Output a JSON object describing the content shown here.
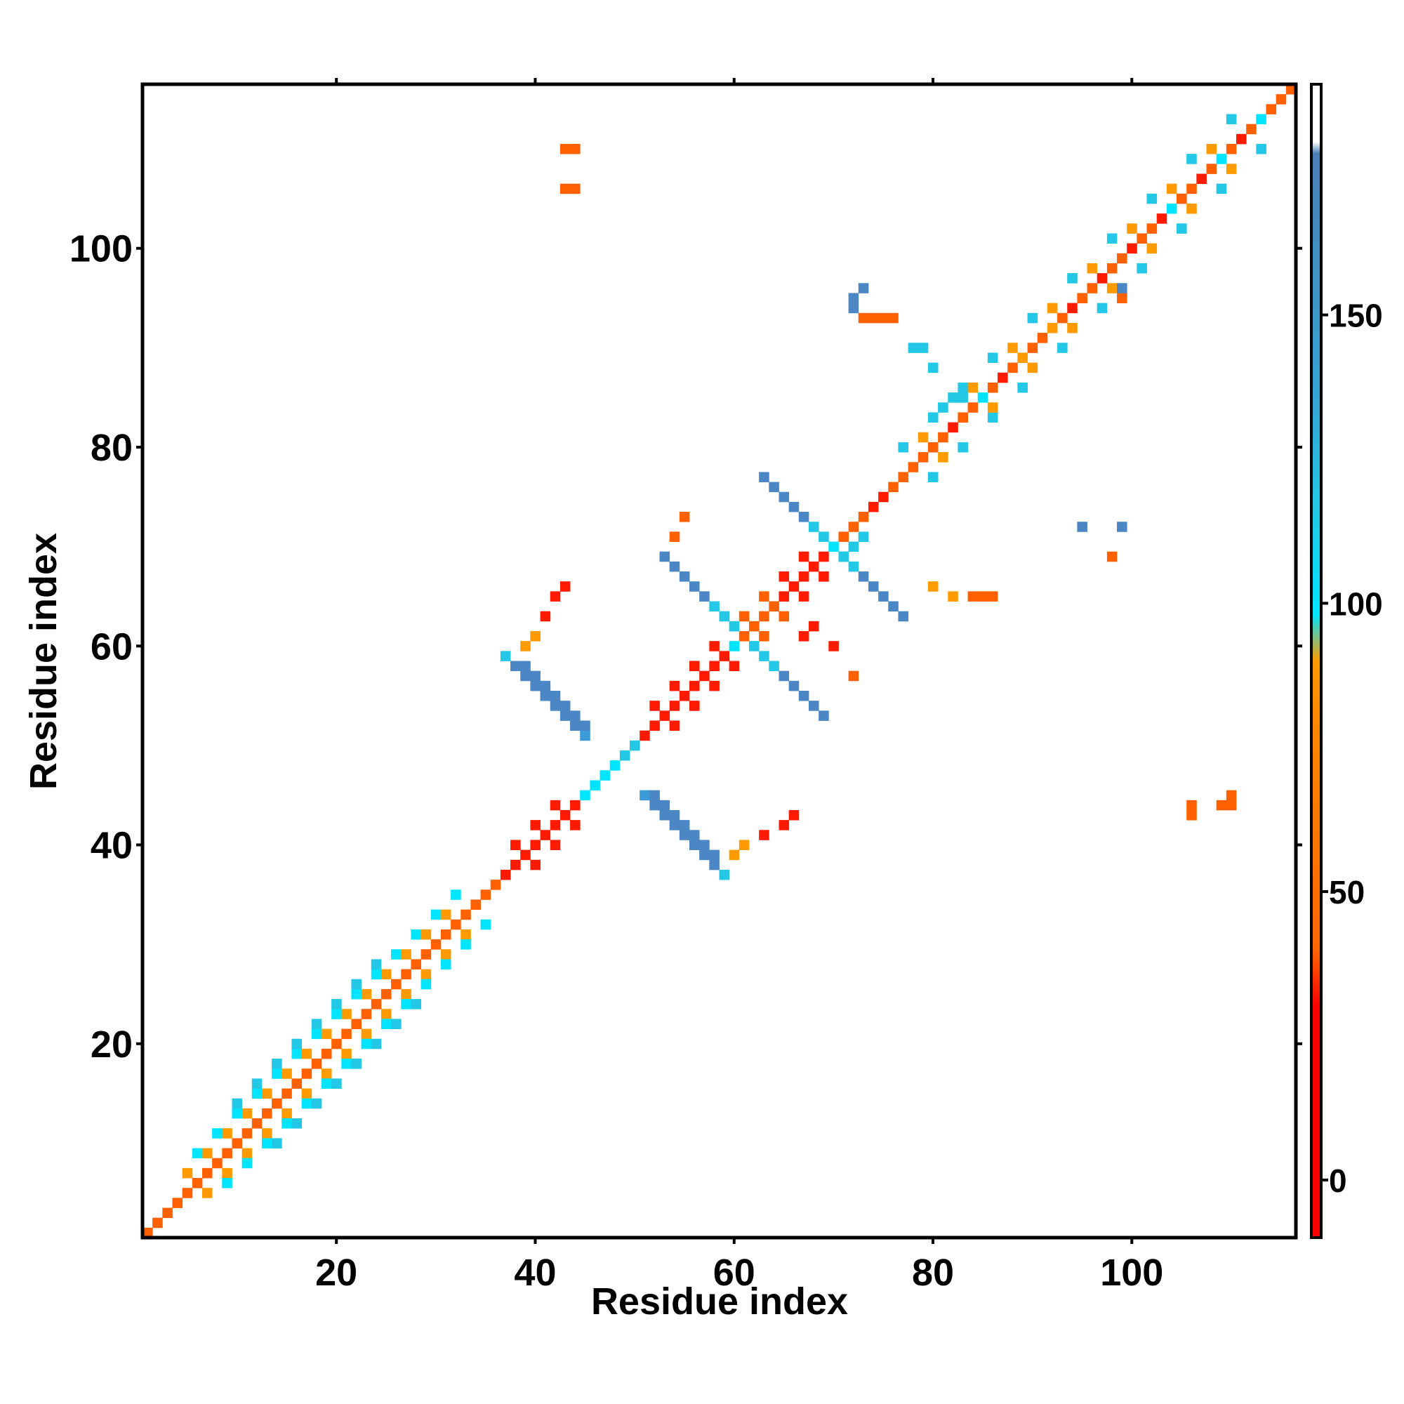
{
  "chart_data": {
    "type": "heatmap",
    "title": "",
    "xlabel": "Residue index",
    "ylabel": "Residue index",
    "xlim": [
      0.5,
      116.5
    ],
    "ylim": [
      0.5,
      116.5
    ],
    "x_ticks": [
      20,
      40,
      60,
      80,
      100
    ],
    "y_ticks": [
      20,
      40,
      60,
      80,
      100
    ],
    "grid": false,
    "colorbar": {
      "range": [
        -10,
        190
      ],
      "ticks": [
        0,
        50,
        100,
        150
      ],
      "gradient": [
        "#ff0000",
        "#ff0000",
        "#ff6600",
        "#ff8800",
        "#ff9900",
        "#00e5ff",
        "#22c9e3",
        "#33a6d6",
        "#4a7fb5",
        "#ffffff"
      ],
      "stops": [
        0,
        0.2,
        0.25,
        0.45,
        0.5,
        0.54,
        0.63,
        0.72,
        0.94,
        0.95
      ]
    },
    "cell_colors": {
      "0": "#ff1a00",
      "1": "#ff6000",
      "2": "#ff9a00",
      "3": "#00e5ff",
      "4": "#22c8e5",
      "5": "#4b86c5",
      "6": "#3b9ad8"
    },
    "cells": [
      [
        1,
        1,
        1
      ],
      [
        2,
        2,
        1
      ],
      [
        3,
        3,
        1
      ],
      [
        4,
        4,
        1
      ],
      [
        5,
        5,
        1
      ],
      [
        6,
        6,
        1
      ],
      [
        7,
        7,
        1
      ],
      [
        8,
        8,
        1
      ],
      [
        9,
        9,
        1
      ],
      [
        10,
        10,
        1
      ],
      [
        11,
        11,
        1
      ],
      [
        12,
        12,
        1
      ],
      [
        13,
        13,
        1
      ],
      [
        14,
        14,
        1
      ],
      [
        15,
        15,
        1
      ],
      [
        16,
        16,
        1
      ],
      [
        17,
        17,
        1
      ],
      [
        18,
        18,
        1
      ],
      [
        19,
        19,
        1
      ],
      [
        20,
        20,
        1
      ],
      [
        21,
        21,
        1
      ],
      [
        22,
        22,
        1
      ],
      [
        23,
        23,
        1
      ],
      [
        24,
        24,
        1
      ],
      [
        25,
        25,
        1
      ],
      [
        26,
        26,
        1
      ],
      [
        27,
        27,
        1
      ],
      [
        28,
        28,
        1
      ],
      [
        29,
        29,
        1
      ],
      [
        30,
        30,
        1
      ],
      [
        31,
        31,
        1
      ],
      [
        32,
        32,
        1
      ],
      [
        33,
        33,
        1
      ],
      [
        34,
        34,
        1
      ],
      [
        35,
        35,
        1
      ],
      [
        36,
        36,
        1
      ],
      [
        37,
        37,
        0
      ],
      [
        38,
        38,
        0
      ],
      [
        39,
        39,
        0
      ],
      [
        40,
        40,
        0
      ],
      [
        41,
        41,
        0
      ],
      [
        42,
        42,
        0
      ],
      [
        43,
        43,
        0
      ],
      [
        44,
        44,
        0
      ],
      [
        45,
        45,
        3
      ],
      [
        46,
        46,
        3
      ],
      [
        47,
        47,
        3
      ],
      [
        48,
        48,
        3
      ],
      [
        49,
        49,
        4
      ],
      [
        50,
        50,
        4
      ],
      [
        51,
        51,
        0
      ],
      [
        52,
        52,
        0
      ],
      [
        53,
        53,
        0
      ],
      [
        54,
        54,
        0
      ],
      [
        55,
        55,
        0
      ],
      [
        56,
        56,
        0
      ],
      [
        57,
        57,
        0
      ],
      [
        58,
        58,
        0
      ],
      [
        59,
        59,
        0
      ],
      [
        60,
        60,
        3
      ],
      [
        61,
        61,
        1
      ],
      [
        62,
        62,
        1
      ],
      [
        63,
        63,
        1
      ],
      [
        64,
        64,
        1
      ],
      [
        65,
        65,
        0
      ],
      [
        66,
        66,
        0
      ],
      [
        67,
        67,
        0
      ],
      [
        68,
        68,
        0
      ],
      [
        69,
        69,
        0
      ],
      [
        70,
        70,
        3
      ],
      [
        71,
        71,
        1
      ],
      [
        72,
        72,
        1
      ],
      [
        73,
        73,
        1
      ],
      [
        74,
        74,
        0
      ],
      [
        75,
        75,
        0
      ],
      [
        76,
        76,
        1
      ],
      [
        77,
        77,
        1
      ],
      [
        78,
        78,
        1
      ],
      [
        79,
        79,
        1
      ],
      [
        80,
        80,
        1
      ],
      [
        81,
        81,
        1
      ],
      [
        82,
        82,
        0
      ],
      [
        83,
        83,
        1
      ],
      [
        84,
        84,
        1
      ],
      [
        85,
        85,
        3
      ],
      [
        86,
        86,
        1
      ],
      [
        87,
        87,
        0
      ],
      [
        88,
        88,
        1
      ],
      [
        89,
        89,
        2
      ],
      [
        90,
        90,
        1
      ],
      [
        91,
        91,
        1
      ],
      [
        92,
        92,
        2
      ],
      [
        93,
        93,
        1
      ],
      [
        94,
        94,
        0
      ],
      [
        95,
        95,
        1
      ],
      [
        96,
        96,
        1
      ],
      [
        97,
        97,
        0
      ],
      [
        98,
        98,
        1
      ],
      [
        99,
        99,
        1
      ],
      [
        100,
        100,
        0
      ],
      [
        101,
        101,
        1
      ],
      [
        102,
        102,
        1
      ],
      [
        103,
        103,
        0
      ],
      [
        104,
        104,
        3
      ],
      [
        105,
        105,
        1
      ],
      [
        106,
        106,
        1
      ],
      [
        107,
        107,
        0
      ],
      [
        108,
        108,
        1
      ],
      [
        109,
        109,
        3
      ],
      [
        110,
        110,
        1
      ],
      [
        111,
        111,
        0
      ],
      [
        112,
        112,
        1
      ],
      [
        113,
        113,
        3
      ],
      [
        114,
        114,
        1
      ],
      [
        115,
        115,
        1
      ],
      [
        116,
        116,
        1
      ],
      [
        5,
        7,
        2
      ],
      [
        7,
        9,
        2
      ],
      [
        9,
        11,
        2
      ],
      [
        11,
        13,
        2
      ],
      [
        13,
        15,
        2
      ],
      [
        15,
        17,
        2
      ],
      [
        17,
        19,
        2
      ],
      [
        19,
        21,
        2
      ],
      [
        21,
        23,
        2
      ],
      [
        23,
        25,
        2
      ],
      [
        25,
        27,
        2
      ],
      [
        27,
        29,
        2
      ],
      [
        29,
        31,
        2
      ],
      [
        31,
        33,
        2
      ],
      [
        7,
        5,
        2
      ],
      [
        9,
        7,
        2
      ],
      [
        11,
        9,
        2
      ],
      [
        13,
        11,
        2
      ],
      [
        15,
        13,
        2
      ],
      [
        17,
        15,
        2
      ],
      [
        19,
        17,
        2
      ],
      [
        21,
        19,
        2
      ],
      [
        23,
        21,
        2
      ],
      [
        25,
        23,
        2
      ],
      [
        27,
        25,
        2
      ],
      [
        29,
        27,
        2
      ],
      [
        31,
        29,
        2
      ],
      [
        33,
        31,
        2
      ],
      [
        6,
        9,
        3
      ],
      [
        8,
        11,
        3
      ],
      [
        10,
        13,
        3
      ],
      [
        12,
        15,
        3
      ],
      [
        14,
        17,
        3
      ],
      [
        16,
        19,
        3
      ],
      [
        18,
        21,
        3
      ],
      [
        20,
        23,
        3
      ],
      [
        22,
        25,
        3
      ],
      [
        24,
        27,
        3
      ],
      [
        26,
        29,
        3
      ],
      [
        28,
        31,
        3
      ],
      [
        30,
        33,
        3
      ],
      [
        32,
        35,
        3
      ],
      [
        9,
        6,
        3
      ],
      [
        11,
        8,
        3
      ],
      [
        13,
        10,
        3
      ],
      [
        15,
        12,
        3
      ],
      [
        17,
        14,
        3
      ],
      [
        19,
        16,
        3
      ],
      [
        21,
        18,
        3
      ],
      [
        23,
        20,
        3
      ],
      [
        25,
        22,
        3
      ],
      [
        27,
        24,
        3
      ],
      [
        29,
        26,
        3
      ],
      [
        31,
        28,
        3
      ],
      [
        33,
        30,
        3
      ],
      [
        35,
        32,
        3
      ],
      [
        10,
        14,
        4
      ],
      [
        12,
        16,
        4
      ],
      [
        14,
        18,
        4
      ],
      [
        16,
        20,
        4
      ],
      [
        18,
        22,
        4
      ],
      [
        20,
        24,
        4
      ],
      [
        22,
        26,
        4
      ],
      [
        24,
        28,
        4
      ],
      [
        14,
        10,
        4
      ],
      [
        16,
        12,
        4
      ],
      [
        18,
        14,
        4
      ],
      [
        20,
        16,
        4
      ],
      [
        22,
        18,
        4
      ],
      [
        24,
        20,
        4
      ],
      [
        26,
        22,
        4
      ],
      [
        28,
        24,
        4
      ],
      [
        38,
        40,
        0
      ],
      [
        40,
        42,
        0
      ],
      [
        42,
        44,
        0
      ],
      [
        52,
        54,
        0
      ],
      [
        54,
        56,
        0
      ],
      [
        56,
        58,
        0
      ],
      [
        58,
        60,
        0
      ],
      [
        40,
        38,
        0
      ],
      [
        42,
        40,
        0
      ],
      [
        44,
        42,
        0
      ],
      [
        54,
        52,
        0
      ],
      [
        56,
        54,
        0
      ],
      [
        58,
        56,
        0
      ],
      [
        60,
        58,
        0
      ],
      [
        61,
        63,
        1
      ],
      [
        63,
        65,
        1
      ],
      [
        65,
        67,
        0
      ],
      [
        67,
        69,
        0
      ],
      [
        63,
        61,
        1
      ],
      [
        65,
        63,
        1
      ],
      [
        67,
        65,
        0
      ],
      [
        69,
        67,
        0
      ],
      [
        77,
        80,
        4
      ],
      [
        80,
        83,
        4
      ],
      [
        83,
        86,
        4
      ],
      [
        86,
        89,
        4
      ],
      [
        90,
        93,
        4
      ],
      [
        94,
        97,
        4
      ],
      [
        98,
        101,
        4
      ],
      [
        102,
        105,
        4
      ],
      [
        106,
        109,
        4
      ],
      [
        110,
        113,
        4
      ],
      [
        80,
        77,
        4
      ],
      [
        83,
        80,
        4
      ],
      [
        86,
        83,
        4
      ],
      [
        89,
        86,
        4
      ],
      [
        93,
        90,
        4
      ],
      [
        97,
        94,
        4
      ],
      [
        101,
        98,
        4
      ],
      [
        105,
        102,
        4
      ],
      [
        109,
        106,
        4
      ],
      [
        113,
        110,
        4
      ],
      [
        79,
        81,
        2
      ],
      [
        84,
        86,
        2
      ],
      [
        88,
        90,
        2
      ],
      [
        92,
        94,
        2
      ],
      [
        96,
        98,
        2
      ],
      [
        100,
        102,
        2
      ],
      [
        104,
        106,
        2
      ],
      [
        108,
        110,
        2
      ],
      [
        81,
        79,
        2
      ],
      [
        86,
        84,
        2
      ],
      [
        90,
        88,
        2
      ],
      [
        94,
        92,
        2
      ],
      [
        98,
        96,
        2
      ],
      [
        102,
        100,
        2
      ],
      [
        106,
        104,
        2
      ],
      [
        110,
        108,
        2
      ],
      [
        38,
        58,
        5
      ],
      [
        39,
        57,
        5
      ],
      [
        40,
        56,
        5
      ],
      [
        41,
        55,
        5
      ],
      [
        42,
        54,
        5
      ],
      [
        43,
        53,
        5
      ],
      [
        44,
        52,
        5
      ],
      [
        45,
        51,
        6
      ],
      [
        58,
        38,
        5
      ],
      [
        57,
        39,
        5
      ],
      [
        56,
        40,
        5
      ],
      [
        55,
        41,
        5
      ],
      [
        54,
        42,
        5
      ],
      [
        53,
        43,
        5
      ],
      [
        52,
        44,
        5
      ],
      [
        51,
        45,
        6
      ],
      [
        52,
        45,
        5
      ],
      [
        53,
        44,
        5
      ],
      [
        54,
        43,
        5
      ],
      [
        55,
        42,
        5
      ],
      [
        56,
        41,
        5
      ],
      [
        57,
        40,
        5
      ],
      [
        58,
        39,
        5
      ],
      [
        59,
        37,
        4
      ],
      [
        45,
        52,
        5
      ],
      [
        44,
        53,
        5
      ],
      [
        43,
        54,
        5
      ],
      [
        42,
        55,
        5
      ],
      [
        41,
        56,
        5
      ],
      [
        40,
        57,
        5
      ],
      [
        39,
        58,
        5
      ],
      [
        37,
        59,
        4
      ],
      [
        53,
        69,
        5
      ],
      [
        54,
        68,
        5
      ],
      [
        55,
        67,
        5
      ],
      [
        56,
        66,
        5
      ],
      [
        57,
        65,
        5
      ],
      [
        58,
        64,
        4
      ],
      [
        59,
        63,
        4
      ],
      [
        60,
        62,
        4
      ],
      [
        69,
        53,
        5
      ],
      [
        68,
        54,
        5
      ],
      [
        67,
        55,
        5
      ],
      [
        66,
        56,
        5
      ],
      [
        65,
        57,
        5
      ],
      [
        64,
        58,
        4
      ],
      [
        63,
        59,
        4
      ],
      [
        62,
        60,
        4
      ],
      [
        63,
        77,
        5
      ],
      [
        64,
        76,
        5
      ],
      [
        65,
        75,
        5
      ],
      [
        66,
        74,
        5
      ],
      [
        67,
        73,
        5
      ],
      [
        68,
        72,
        4
      ],
      [
        69,
        71,
        4
      ],
      [
        77,
        63,
        5
      ],
      [
        76,
        64,
        5
      ],
      [
        75,
        65,
        5
      ],
      [
        74,
        66,
        5
      ],
      [
        73,
        67,
        5
      ],
      [
        72,
        68,
        4
      ],
      [
        71,
        69,
        4
      ],
      [
        71,
        69,
        4
      ],
      [
        72,
        70,
        4
      ],
      [
        73,
        71,
        4
      ],
      [
        42,
        65,
        0
      ],
      [
        43,
        66,
        0
      ],
      [
        41,
        63,
        0
      ],
      [
        40,
        61,
        2
      ],
      [
        39,
        60,
        2
      ],
      [
        65,
        42,
        0
      ],
      [
        66,
        43,
        0
      ],
      [
        63,
        41,
        0
      ],
      [
        61,
        40,
        2
      ],
      [
        60,
        39,
        2
      ],
      [
        68,
        62,
        0
      ],
      [
        67,
        61,
        0
      ],
      [
        70,
        60,
        0
      ],
      [
        72,
        57,
        1
      ],
      [
        55,
        73,
        1
      ],
      [
        54,
        71,
        1
      ],
      [
        73,
        93,
        1
      ],
      [
        74,
        93,
        1
      ],
      [
        75,
        93,
        1
      ],
      [
        76,
        93,
        1
      ],
      [
        78,
        90,
        4
      ],
      [
        79,
        90,
        4
      ],
      [
        80,
        88,
        4
      ],
      [
        81,
        84,
        4
      ],
      [
        82,
        85,
        4
      ],
      [
        83,
        85,
        4
      ],
      [
        84,
        65,
        1
      ],
      [
        85,
        65,
        1
      ],
      [
        86,
        65,
        1
      ],
      [
        82,
        65,
        2
      ],
      [
        80,
        66,
        2
      ],
      [
        72,
        95,
        5
      ],
      [
        72,
        94,
        5
      ],
      [
        73,
        96,
        5
      ],
      [
        99,
        95,
        1
      ],
      [
        99,
        96,
        5
      ],
      [
        98,
        69,
        1
      ],
      [
        95,
        72,
        5
      ],
      [
        99,
        72,
        5
      ],
      [
        43,
        110,
        1
      ],
      [
        44,
        110,
        1
      ],
      [
        43,
        106,
        1
      ],
      [
        44,
        106,
        1
      ],
      [
        106,
        43,
        1
      ],
      [
        106,
        44,
        1
      ],
      [
        109,
        44,
        1
      ],
      [
        110,
        45,
        1
      ],
      [
        110,
        44,
        1
      ]
    ]
  }
}
